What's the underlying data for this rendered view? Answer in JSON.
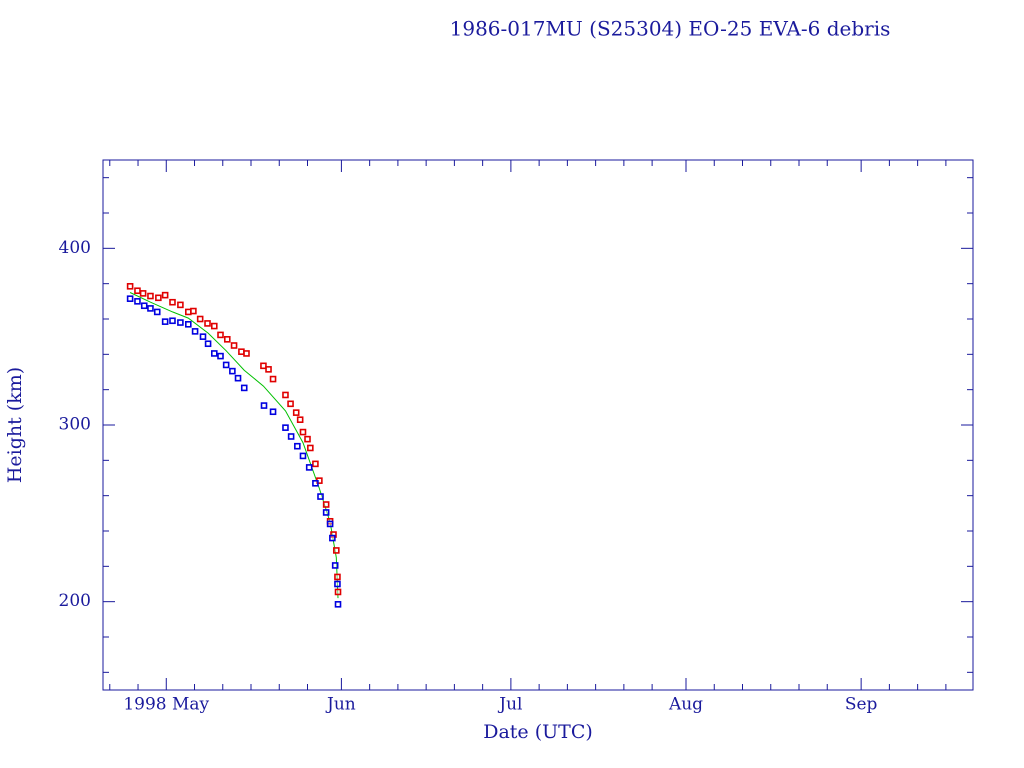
{
  "chart_data": {
    "type": "scatter",
    "title": "1986-017MU (S25304) EO-25 EVA-6 debris",
    "xlabel": "Date (UTC)",
    "ylabel": "Height (km)",
    "xlim": [
      -11.2,
      142.8
    ],
    "ylim": [
      150,
      450
    ],
    "xticks": [
      {
        "value": 0,
        "label": "1998 May"
      },
      {
        "value": 31,
        "label": "Jun"
      },
      {
        "value": 61,
        "label": "Jul"
      },
      {
        "value": 92,
        "label": "Aug"
      },
      {
        "value": 123,
        "label": "Sep"
      }
    ],
    "xminorticks": [
      -10,
      -5,
      5,
      10,
      15,
      20,
      25,
      36,
      41,
      46,
      51,
      56,
      66,
      71,
      76,
      81,
      86,
      97,
      102,
      107,
      112,
      117,
      128,
      133,
      138
    ],
    "yticks": [
      200,
      300,
      400
    ],
    "yminorticks": [
      160,
      180,
      220,
      240,
      260,
      280,
      320,
      340,
      360,
      380,
      420,
      440
    ],
    "series": [
      {
        "color": "#e00000",
        "style": "markers",
        "x": [
          -6.4,
          -5.1,
          -4.1,
          -2.8,
          -1.4,
          -0.2,
          1.1,
          2.5,
          3.9,
          4.8,
          6.0,
          7.3,
          8.5,
          9.6,
          10.8,
          12.0,
          13.3,
          14.2,
          17.2,
          18.1,
          18.9,
          21.1,
          22.0,
          23.0,
          23.7,
          24.2,
          25.0,
          25.5,
          26.4,
          27.1,
          28.3,
          29.0,
          29.6,
          30.1,
          30.3,
          30.4
        ],
        "values": [
          378.5,
          376,
          374.5,
          373,
          372,
          373.5,
          369.5,
          368,
          364,
          364.5,
          360,
          357.5,
          356,
          351,
          348.5,
          345,
          341.5,
          340.5,
          333.5,
          331.5,
          326,
          317,
          312,
          307,
          303,
          296,
          292,
          287,
          278,
          268.5,
          255,
          245.5,
          238,
          229,
          214,
          205.5
        ]
      },
      {
        "color": "#0000e0",
        "style": "markers",
        "x": [
          -6.4,
          -5.1,
          -3.9,
          -2.8,
          -1.6,
          -0.2,
          1.1,
          2.5,
          3.9,
          5.1,
          6.5,
          7.4,
          8.5,
          9.6,
          10.6,
          11.7,
          12.7,
          13.8,
          17.3,
          18.9,
          21.1,
          22.1,
          23.2,
          24.2,
          25.3,
          26.4,
          27.3,
          28.3,
          29.0,
          29.4,
          29.9,
          30.3,
          30.4
        ],
        "values": [
          371.5,
          370,
          367.5,
          366,
          364,
          358.5,
          359,
          358,
          357,
          353,
          350,
          346,
          340.5,
          339,
          334,
          330.5,
          326.5,
          321,
          311,
          307.5,
          298.5,
          293.5,
          288,
          282.5,
          276,
          267,
          259.5,
          250.5,
          244,
          236,
          220.5,
          210,
          198.5
        ]
      },
      {
        "color": "#00c000",
        "style": "line",
        "x": [
          -6.4,
          -2.8,
          1.1,
          3.9,
          7.4,
          10.6,
          13.8,
          17.2,
          21.1,
          24.2,
          27.1,
          29.0,
          30.1,
          30.4
        ],
        "values": [
          375,
          369.5,
          364,
          360.5,
          352,
          342,
          331,
          322,
          308,
          290,
          264,
          245,
          225,
          202
        ]
      }
    ]
  }
}
